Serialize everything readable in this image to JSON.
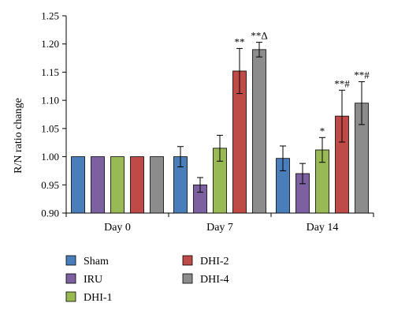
{
  "chart_data": {
    "type": "bar",
    "ylabel": "R/N ratio change",
    "xlabel": "",
    "title": "",
    "ylim": [
      0.9,
      1.25
    ],
    "yticks": [
      "0.90",
      "0.95",
      "1.00",
      "1.05",
      "1.10",
      "1.15",
      "1.20",
      "1.25"
    ],
    "categories": [
      "Day 0",
      "Day 7",
      "Day 14"
    ],
    "legend_position": "bottom",
    "series": [
      {
        "name": "Sham",
        "color": "#4a7ebb",
        "values": [
          1.0,
          1.0,
          0.997
        ],
        "errors": [
          0,
          0.018,
          0.022
        ],
        "annotations": [
          "",
          "",
          ""
        ]
      },
      {
        "name": "IRU",
        "color": "#7d60a0",
        "values": [
          1.0,
          0.95,
          0.97
        ],
        "errors": [
          0,
          0.013,
          0.018
        ],
        "annotations": [
          "",
          "",
          ""
        ]
      },
      {
        "name": "DHI-1",
        "color": "#98b954",
        "values": [
          1.0,
          1.015,
          1.012
        ],
        "errors": [
          0,
          0.023,
          0.022
        ],
        "annotations": [
          "",
          "",
          "*"
        ]
      },
      {
        "name": "DHI-2",
        "color": "#be4b48",
        "values": [
          1.0,
          1.152,
          1.072
        ],
        "errors": [
          0,
          0.04,
          0.046
        ],
        "annotations": [
          "",
          "**",
          "**#"
        ]
      },
      {
        "name": "DHI-4",
        "color": "#8c8c8c",
        "values": [
          1.0,
          1.19,
          1.095
        ],
        "errors": [
          0,
          0.013,
          0.038
        ],
        "annotations": [
          "",
          "**Δ",
          "**#"
        ]
      }
    ]
  }
}
